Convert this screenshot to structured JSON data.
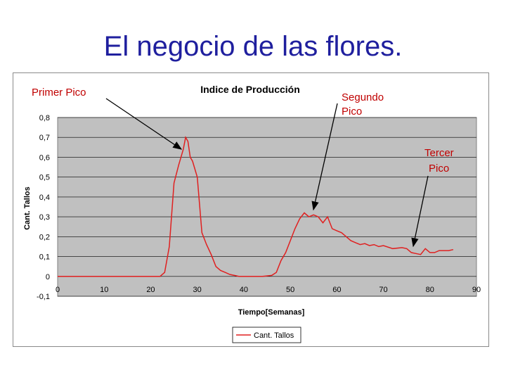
{
  "slide": {
    "title": "El negocio de las flores."
  },
  "colors": {
    "title": "#1f1f9e",
    "plot_area": "#c0c0c0",
    "series": "#e02020",
    "annotation": "#c00000"
  },
  "annotations": {
    "first": "Primer Pico",
    "second_l1": "Segundo",
    "second_l2": "Pico",
    "third_l1": "Tercer",
    "third_l2": "Pico"
  },
  "chart_data": {
    "type": "line",
    "title": "Indice de Producción",
    "xlabel": "Tiempo[Semanas]",
    "ylabel": "Cant. Tallos",
    "xlim": [
      0,
      90
    ],
    "ylim": [
      -0.1,
      0.8
    ],
    "x_ticks": [
      0,
      10,
      20,
      30,
      40,
      50,
      60,
      70,
      80,
      90
    ],
    "y_ticks": [
      "-0,1",
      "0",
      "0,1",
      "0,2",
      "0,3",
      "0,4",
      "0,5",
      "0,6",
      "0,7",
      "0,8"
    ],
    "grid": true,
    "legend_position": "bottom",
    "series": [
      {
        "name": "Cant. Tallos",
        "x": [
          0,
          10,
          20,
          22,
          23,
          24,
          25,
          26,
          27,
          27.5,
          28,
          28.5,
          29,
          30,
          31,
          32,
          33,
          34,
          35,
          36,
          37,
          38,
          39,
          40,
          42,
          44,
          46,
          47,
          48,
          49,
          50,
          51,
          52,
          53,
          54,
          55,
          56,
          57,
          58,
          59,
          60,
          61,
          62,
          63,
          64,
          65,
          66,
          67,
          68,
          69,
          70,
          72,
          74,
          75,
          76,
          77,
          78,
          79,
          80,
          81,
          82,
          83,
          84,
          85
        ],
        "y": [
          0,
          0,
          0,
          0,
          0.02,
          0.15,
          0.47,
          0.56,
          0.64,
          0.7,
          0.68,
          0.6,
          0.58,
          0.5,
          0.22,
          0.16,
          0.11,
          0.05,
          0.03,
          0.02,
          0.01,
          0.005,
          0,
          0,
          0,
          0,
          0.005,
          0.02,
          0.08,
          0.12,
          0.18,
          0.24,
          0.29,
          0.32,
          0.3,
          0.31,
          0.3,
          0.27,
          0.3,
          0.24,
          0.23,
          0.22,
          0.2,
          0.18,
          0.17,
          0.16,
          0.165,
          0.155,
          0.16,
          0.15,
          0.155,
          0.14,
          0.145,
          0.14,
          0.12,
          0.115,
          0.11,
          0.14,
          0.12,
          0.12,
          0.13,
          0.13,
          0.13,
          0.135
        ]
      }
    ]
  }
}
